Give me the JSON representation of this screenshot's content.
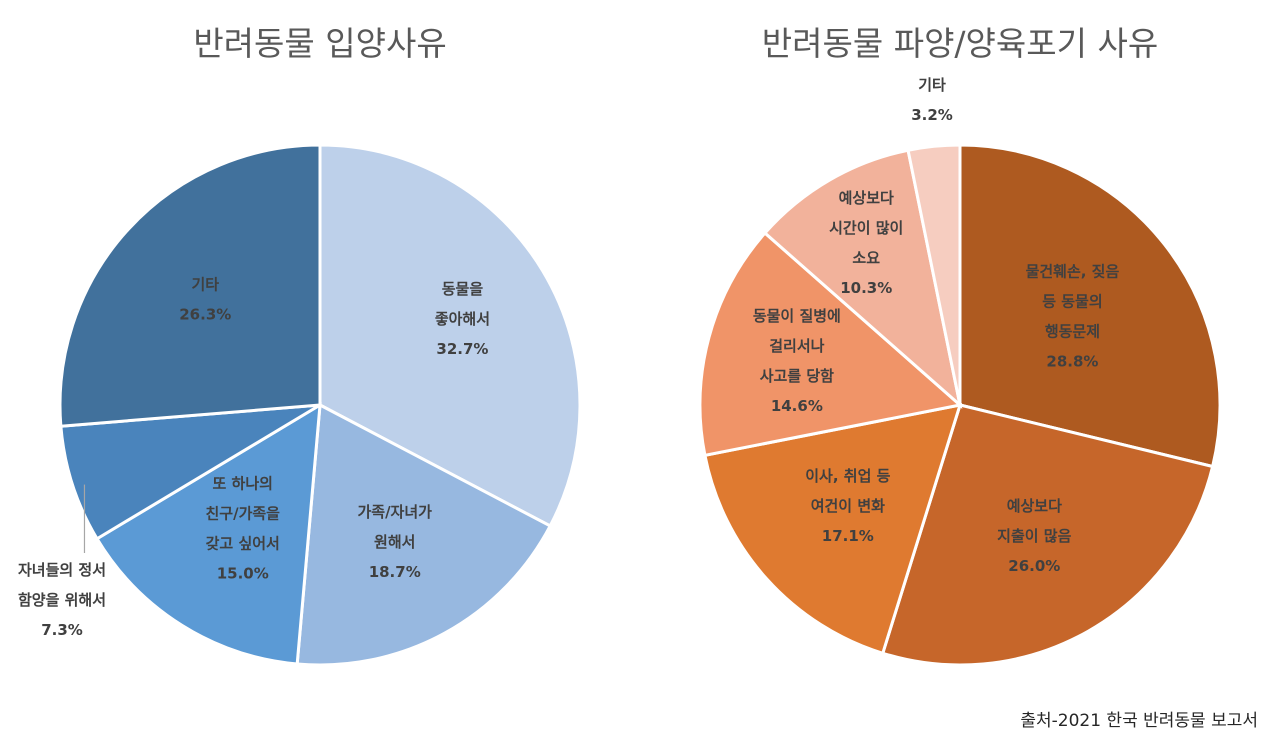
{
  "source_note": "출처-2021 한국 반려동물 보고서",
  "chart_data": [
    {
      "type": "pie",
      "title": "반려동물 입양사유",
      "slices": [
        {
          "label": [
            "동물을",
            "좋아해서"
          ],
          "value": 32.7,
          "value_label": "32.7%",
          "color": "#bdd0ea"
        },
        {
          "label": [
            "가족/자녀가",
            "원해서"
          ],
          "value": 18.7,
          "value_label": "18.7%",
          "color": "#97b8e0"
        },
        {
          "label": [
            "또 하나의",
            "친구/가족을",
            "갖고 싶어서"
          ],
          "value": 15.0,
          "value_label": "15.0%",
          "color": "#5b9ad5"
        },
        {
          "label": [
            "자녀들의 정서",
            "함양을 위해서"
          ],
          "value": 7.3,
          "value_label": "7.3%",
          "color": "#4a84bc"
        },
        {
          "label": [
            "기타"
          ],
          "value": 26.3,
          "value_label": "26.3%",
          "color": "#41719c"
        }
      ]
    },
    {
      "type": "pie",
      "title": "반려동물 파양/양육포기 사유",
      "slices": [
        {
          "label": [
            "물건훼손, 짖음",
            "등 동물의",
            "행동문제"
          ],
          "value": 28.8,
          "value_label": "28.8%",
          "color": "#ae5a20"
        },
        {
          "label": [
            "예상보다",
            "지출이 많음"
          ],
          "value": 26.0,
          "value_label": "26.0%",
          "color": "#c6662a"
        },
        {
          "label": [
            "이사, 취업 등",
            "여건이 변화"
          ],
          "value": 17.1,
          "value_label": "17.1%",
          "color": "#df7a30"
        },
        {
          "label": [
            "동물이 질병에",
            "걸리서나",
            "사고를 당함"
          ],
          "value": 14.6,
          "value_label": "14.6%",
          "color": "#f09468"
        },
        {
          "label": [
            "예상보다",
            "시간이 많이",
            "소요"
          ],
          "value": 10.3,
          "value_label": "10.3%",
          "color": "#f2b29b"
        },
        {
          "label": [
            "기타"
          ],
          "value": 3.2,
          "value_label": "3.2%",
          "color": "#f6cdc0"
        }
      ]
    }
  ]
}
